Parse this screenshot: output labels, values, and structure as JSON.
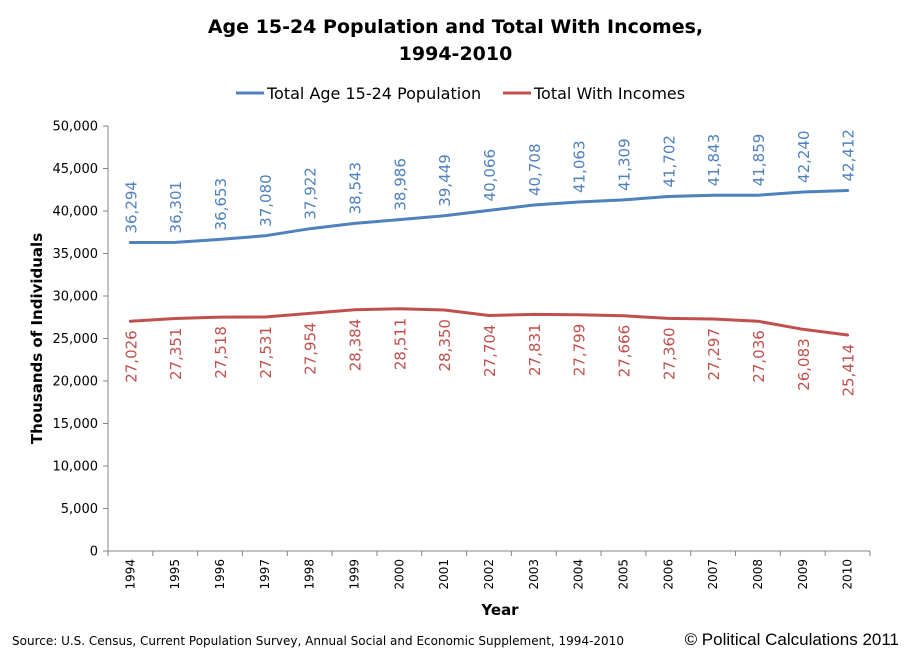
{
  "title_line1": "Age 15-24 Population and Total With Incomes,",
  "title_line2": "1994-2010",
  "source": "Source: U.S. Census, Current Population Survey, Annual Social and Economic Supplement, 1994-2010",
  "copyright": "© Political Calculations 2011",
  "chart_data": {
    "type": "line",
    "title": "Age 15-24 Population and Total With Incomes, 1994-2010",
    "xlabel": "Year",
    "ylabel": "Thousands of Individuals",
    "ylim": [
      0,
      50000
    ],
    "ytick_step": 5000,
    "yticks": [
      "0",
      "5,000",
      "10,000",
      "15,000",
      "20,000",
      "25,000",
      "30,000",
      "35,000",
      "40,000",
      "45,000",
      "50,000"
    ],
    "categories": [
      "1994",
      "1995",
      "1996",
      "1997",
      "1998",
      "1999",
      "2000",
      "2001",
      "2002",
      "2003",
      "2004",
      "2005",
      "2006",
      "2007",
      "2008",
      "2009",
      "2010"
    ],
    "legend_position": "top",
    "series": [
      {
        "name": "Total Age 15-24 Population",
        "color": "#4F81BD",
        "label_position": "above",
        "values": [
          36294,
          36301,
          36653,
          37080,
          37922,
          38543,
          38986,
          39449,
          40066,
          40708,
          41063,
          41309,
          41702,
          41843,
          41859,
          42240,
          42412
        ],
        "labels": [
          "36,294",
          "36,301",
          "36,653",
          "37,080",
          "37,922",
          "38,543",
          "38,986",
          "39,449",
          "40,066",
          "40,708",
          "41,063",
          "41,309",
          "41,702",
          "41,843",
          "41,859",
          "42,240",
          "42,412"
        ]
      },
      {
        "name": "Total With Incomes",
        "color": "#C0504D",
        "label_position": "below",
        "values": [
          27026,
          27351,
          27518,
          27531,
          27954,
          28384,
          28511,
          28350,
          27704,
          27831,
          27799,
          27666,
          27360,
          27297,
          27036,
          26083,
          25414
        ],
        "labels": [
          "27,026",
          "27,351",
          "27,518",
          "27,531",
          "27,954",
          "28,384",
          "28,511",
          "28,350",
          "27,704",
          "27,831",
          "27,799",
          "27,666",
          "27,360",
          "27,297",
          "27,036",
          "26,083",
          "25,414"
        ]
      }
    ]
  }
}
